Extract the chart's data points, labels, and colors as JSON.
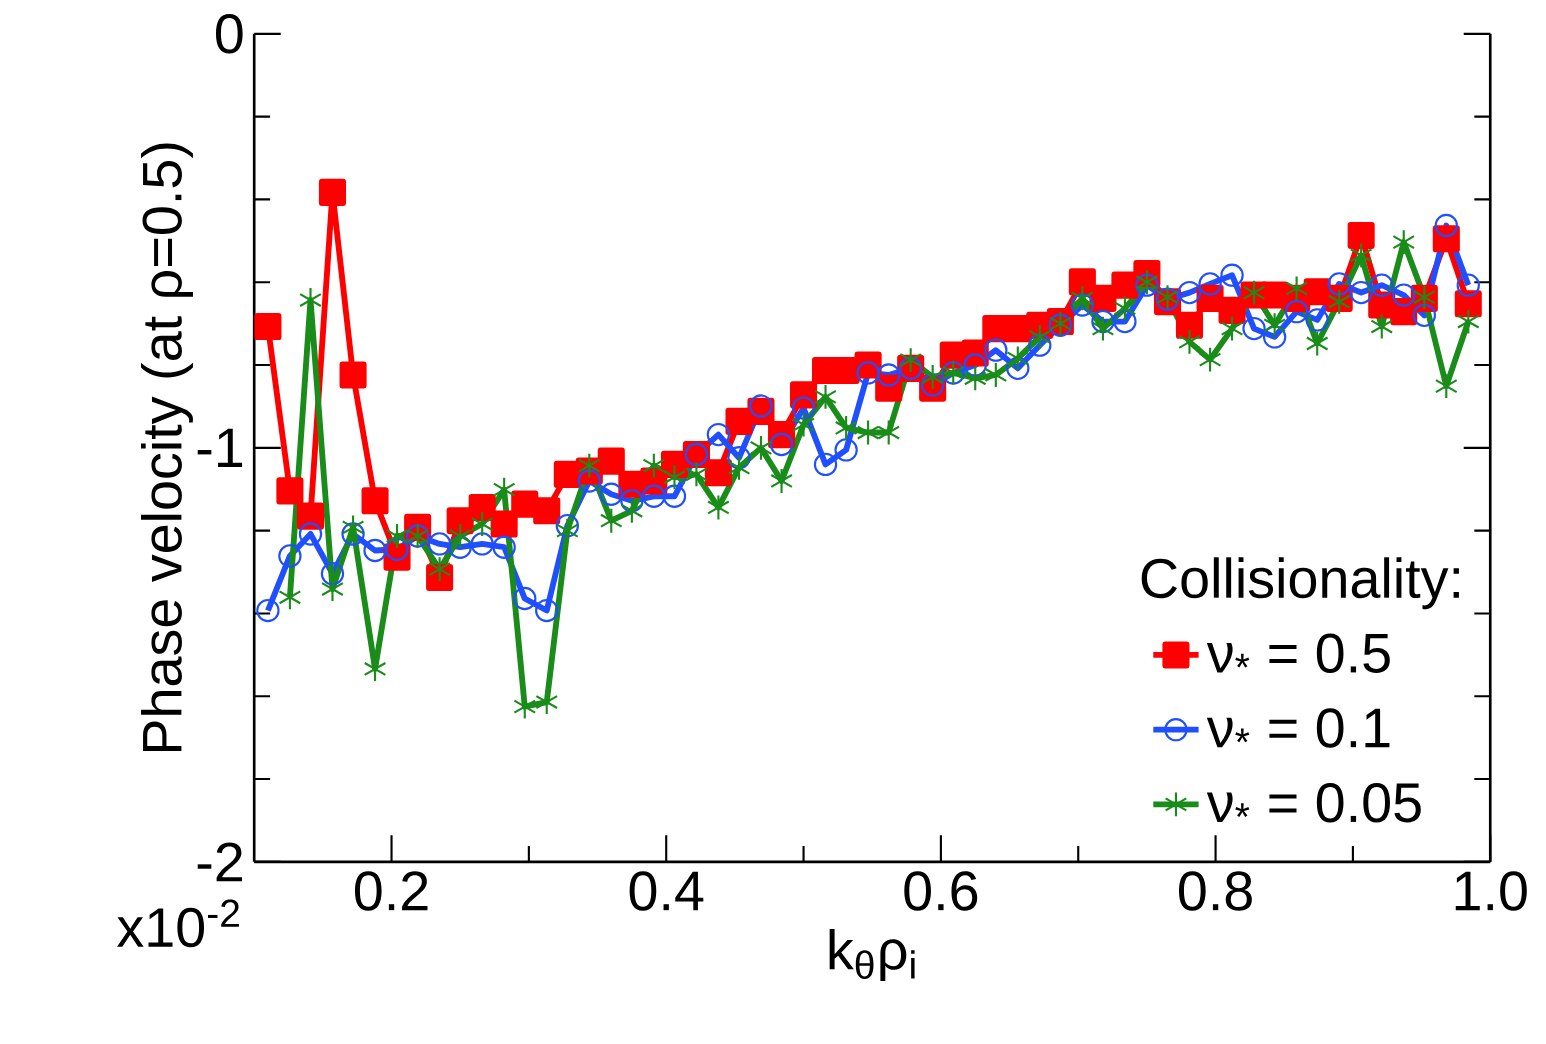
{
  "chart_data": {
    "type": "line",
    "xlabel": "k$_{θ}$ρ$_{i}$",
    "ylabel": "Phase velocity (at ρ=0.5)",
    "legend_title": "Collisionality:",
    "legend": "bottom right",
    "xlim": [
      0.1,
      1.0
    ],
    "ylim": [
      -2,
      0
    ],
    "xticks": [
      0.2,
      0.4,
      0.6,
      0.8,
      {
        "value": 1.0,
        "label": "1.0"
      }
    ],
    "yticks": [
      0,
      -1,
      -2
    ],
    "annotations": [
      "x10$^{-2}$"
    ],
    "x": [
      0.11,
      0.126,
      0.141,
      0.157,
      0.172,
      0.188,
      0.204,
      0.219,
      0.235,
      0.25,
      0.266,
      0.282,
      0.297,
      0.313,
      0.328,
      0.344,
      0.36,
      0.375,
      0.391,
      0.406,
      0.422,
      0.438,
      0.453,
      0.469,
      0.484,
      0.5,
      0.516,
      0.531,
      0.547,
      0.562,
      0.578,
      0.594,
      0.609,
      0.625,
      0.64,
      0.656,
      0.672,
      0.687,
      0.703,
      0.718,
      0.734,
      0.75,
      0.765,
      0.781,
      0.796,
      0.812,
      0.828,
      0.843,
      0.859,
      0.874,
      0.89,
      0.906,
      0.921,
      0.937,
      0.952,
      0.968,
      0.984
    ],
    "series": [
      {
        "name": "ν$_{*}$ = 0.5",
        "color": "#ff0000",
        "marker": "square",
        "values": [
          -0.707,
          -1.104,
          -1.165,
          -0.383,
          -0.824,
          -1.128,
          -1.264,
          -1.192,
          -1.313,
          -1.176,
          -1.144,
          -1.184,
          -1.136,
          -1.152,
          -1.064,
          -1.056,
          -1.032,
          -1.088,
          -1.08,
          -1.04,
          -1.016,
          -1.06,
          -0.936,
          -0.912,
          -0.968,
          -0.872,
          -0.813,
          -0.813,
          -0.8,
          -0.856,
          -0.808,
          -0.856,
          -0.776,
          -0.771,
          -0.712,
          -0.712,
          -0.704,
          -0.695,
          -0.599,
          -0.639,
          -0.607,
          -0.579,
          -0.647,
          -0.704,
          -0.639,
          -0.668,
          -0.631,
          -0.631,
          -0.639,
          -0.623,
          -0.639,
          -0.487,
          -0.655,
          -0.671,
          -0.639,
          -0.495,
          -0.652
        ]
      },
      {
        "name": "ν$_{*}$ = 0.1",
        "color": "#1f4fff",
        "marker": "circle",
        "values": [
          -1.393,
          -1.261,
          -1.208,
          -1.304,
          -1.208,
          -1.248,
          -1.245,
          -1.213,
          -1.232,
          -1.24,
          -1.232,
          -1.24,
          -1.364,
          -1.393,
          -1.188,
          -1.08,
          -1.112,
          -1.128,
          -1.117,
          -1.117,
          -1.016,
          -0.968,
          -1.024,
          -0.899,
          -0.992,
          -0.904,
          -1.04,
          -1.005,
          -0.819,
          -0.824,
          -0.808,
          -0.848,
          -0.819,
          -0.8,
          -0.764,
          -0.808,
          -0.752,
          -0.704,
          -0.655,
          -0.695,
          -0.695,
          -0.607,
          -0.641,
          -0.625,
          -0.604,
          -0.583,
          -0.712,
          -0.732,
          -0.671,
          -0.691,
          -0.604,
          -0.625,
          -0.607,
          -0.631,
          -0.68,
          -0.463,
          -0.607
        ]
      },
      {
        "name": "ν$_{*}$ = 0.05",
        "color": "#1a8c1a",
        "marker": "cross",
        "values": [
          null,
          -1.361,
          -0.643,
          -1.341,
          -1.192,
          -1.534,
          -1.213,
          -1.213,
          -1.293,
          -1.213,
          -1.184,
          -1.101,
          -1.625,
          -1.614,
          -1.2,
          -1.043,
          -1.176,
          -1.152,
          -1.043,
          -1.071,
          -1.064,
          -1.144,
          -1.048,
          -1.0,
          -1.08,
          -0.944,
          -0.877,
          -0.952,
          -0.963,
          -0.963,
          -0.788,
          -0.829,
          -0.819,
          -0.832,
          -0.824,
          -0.784,
          -0.732,
          -0.7,
          -0.639,
          -0.712,
          -0.663,
          -0.6,
          -0.636,
          -0.744,
          -0.787,
          -0.712,
          -0.625,
          -0.704,
          -0.615,
          -0.748,
          -0.647,
          -0.535,
          -0.707,
          -0.503,
          -0.636,
          -0.851,
          -0.695
        ]
      }
    ]
  }
}
